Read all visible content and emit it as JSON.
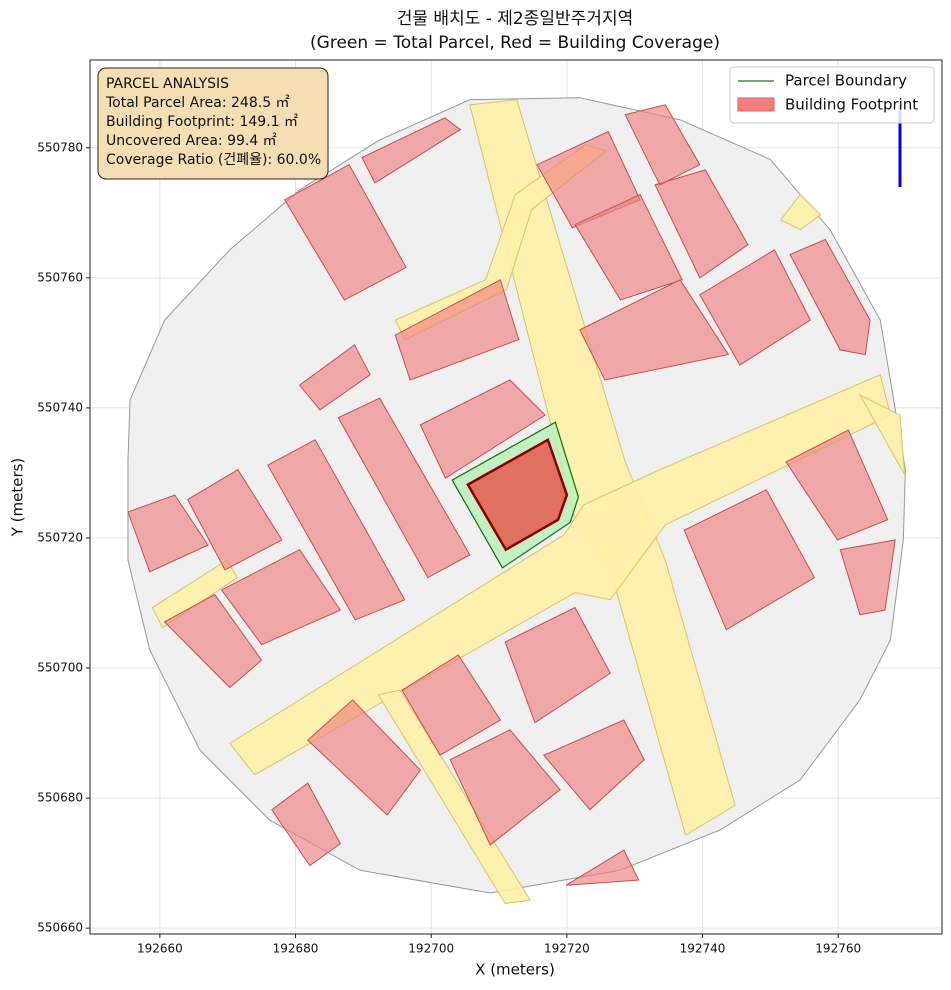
{
  "chart_data": {
    "type": "polygon",
    "title": "건물 배치도 - 제2종일반주거지역",
    "subtitle": "(Green = Total Parcel, Red = Building Coverage)",
    "xlabel": "X (meters)",
    "ylabel": "Y (meters)",
    "xlim": [
      192649.7,
      192775.3
    ],
    "ylim": [
      550659.1,
      550793.5
    ],
    "xticks": [
      192660,
      192680,
      192700,
      192720,
      192740,
      192760
    ],
    "yticks": [
      550660,
      550680,
      550700,
      550720,
      550740,
      550760,
      550780
    ],
    "grid": true,
    "legend": "upper right",
    "series": [
      {
        "name": "Parcel Boundary",
        "color": "#1a7a1a"
      },
      {
        "name": "Building Footprint",
        "color": "#f08080"
      }
    ],
    "info_box": {
      "title": "PARCEL ANALYSIS",
      "lines": [
        "Total Parcel Area: 248.5 ㎡",
        "Building Footprint: 149.1 ㎡",
        "Uncovered Area: 99.4 ㎡",
        "Coverage Ratio (건폐율): 60.0%"
      ]
    },
    "area": {
      "x": [
        192655.3,
        192655.6,
        192660.7,
        192670.3,
        192680.6,
        192692.4,
        192705.7,
        192721.9,
        192736.7,
        192750.0,
        192758.8,
        192766.2,
        192769.9,
        192769.6,
        192767.7,
        192763.2,
        192754.4,
        192742.6,
        192727.8,
        192708.7,
        192689.5,
        192676.2,
        192665.9,
        192658.5,
        192655.3
      ],
      "y": [
        550732.0,
        550741.2,
        550753.5,
        550764.3,
        550773.5,
        550781.2,
        550787.4,
        550787.7,
        550784.3,
        550778.2,
        550767.4,
        550753.5,
        550730.5,
        550719.7,
        550704.3,
        550695.1,
        550682.8,
        550675.1,
        550668.9,
        550665.4,
        550668.9,
        550676.6,
        550687.4,
        550702.8,
        550716.6
      ]
    },
    "roads": [
      {
        "x": [
          192705.7,
          192712.6,
          192728.6,
          192734.5,
          192744.8,
          192737.5,
          192726.4,
          192721.2
        ],
        "y": [
          550786.6,
          550787.4,
          550731.7,
          550716.6,
          550678.9,
          550674.3,
          550715.1,
          550722.8
        ]
      },
      {
        "x": [
          192670.3,
          192674.0,
          192721.2,
          192726.4,
          192734.5,
          192767.7,
          192766.2,
          192733.7,
          192722.5,
          192719.6
        ],
        "y": [
          550688.4,
          550683.6,
          550711.6,
          550710.5,
          550722.0,
          550738.9,
          550745.1,
          550730.5,
          550725.1,
          550720.5
        ]
      },
      {
        "x": [
          192658.9,
          192660.4,
          192671.4,
          192669.9
        ],
        "y": [
          550709.3,
          550706.2,
          550713.9,
          550716.6
        ]
      },
      {
        "x": [
          192692.2,
          192695.4,
          192714.6,
          192710.9
        ],
        "y": [
          550695.9,
          550696.6,
          550664.3,
          550663.8
        ]
      },
      {
        "x": [
          192694.7,
          192708.0,
          192712.4,
          192722.8,
          192725.8,
          192714.8,
          192711.1,
          192696.2
        ],
        "y": [
          550753.5,
          550759.7,
          550772.8,
          550780.5,
          550779.5,
          550770.5,
          550758.2,
          550750.5
        ]
      },
      {
        "x": [
          192751.5,
          192754.4,
          192757.4,
          192754.4
        ],
        "y": [
          550768.9,
          550772.8,
          550769.7,
          550767.4
        ]
      },
      {
        "x": [
          192763.2,
          192769.8,
          192769.1
        ],
        "y": [
          550742.0,
          550729.7,
          550738.9
        ]
      }
    ],
    "buildings": [
      {
        "x": [
          192678.4,
          192687.9,
          192696.3,
          192687.2
        ],
        "y": [
          550772.0,
          550777.4,
          550761.6,
          550756.6
        ]
      },
      {
        "x": [
          192689.8,
          192702.0,
          192704.3,
          192691.7
        ],
        "y": [
          550778.5,
          550784.6,
          550782.8,
          550774.6
        ]
      },
      {
        "x": [
          192715.6,
          192726.1,
          192730.8,
          192720.8
        ],
        "y": [
          550777.4,
          550782.5,
          550772.0,
          550767.7
        ]
      },
      {
        "x": [
          192721.2,
          192730.8,
          192737.0,
          192727.9
        ],
        "y": [
          550768.2,
          550772.8,
          550759.7,
          550756.6
        ]
      },
      {
        "x": [
          192733.0,
          192740.4,
          192746.7,
          192739.6
        ],
        "y": [
          550774.3,
          550776.6,
          550765.1,
          550760.0
        ]
      },
      {
        "x": [
          192728.6,
          192734.5,
          192739.6,
          192733.7
        ],
        "y": [
          550785.1,
          550786.6,
          550777.4,
          550774.3
        ]
      },
      {
        "x": [
          192694.7,
          192710.2,
          192712.9,
          192696.9
        ],
        "y": [
          550751.2,
          550759.7,
          550750.5,
          550744.3
        ]
      },
      {
        "x": [
          192721.9,
          192736.7,
          192743.8,
          192725.6
        ],
        "y": [
          550752.0,
          550759.7,
          550748.2,
          550744.3
        ]
      },
      {
        "x": [
          192739.6,
          192750.6,
          192755.9,
          192745.5
        ],
        "y": [
          550757.4,
          550764.3,
          550753.5,
          550746.6
        ]
      },
      {
        "x": [
          192752.9,
          192758.1,
          192764.7,
          192764.0,
          192760.3
        ],
        "y": [
          550763.6,
          550765.9,
          550753.5,
          550748.2,
          550748.9
        ]
      },
      {
        "x": [
          192698.4,
          192711.6,
          192716.8,
          192702.1
        ],
        "y": [
          550737.4,
          550744.3,
          550738.9,
          550729.2
        ]
      },
      {
        "x": [
          192680.6,
          192688.7,
          192691.0,
          192683.6
        ],
        "y": [
          550743.5,
          550749.7,
          550745.1,
          550739.7
        ]
      },
      {
        "x": [
          192686.3,
          192692.4,
          192705.7,
          192699.5
        ],
        "y": [
          550738.5,
          550741.5,
          550717.4,
          550713.9
        ]
      },
      {
        "x": [
          192675.9,
          192682.9,
          192696.1,
          192688.8
        ],
        "y": [
          550731.2,
          550735.1,
          550710.5,
          550707.4
        ]
      },
      {
        "x": [
          192664.1,
          192671.5,
          192678.0,
          192669.6
        ],
        "y": [
          550725.9,
          550730.5,
          550719.7,
          550715.1
        ]
      },
      {
        "x": [
          192655.3,
          192662.2,
          192667.1,
          192658.5
        ],
        "y": [
          550724.0,
          550726.6,
          550718.9,
          550714.8
        ]
      },
      {
        "x": [
          192669.1,
          192680.6,
          192686.6,
          192675.0
        ],
        "y": [
          550712.0,
          550718.2,
          550708.9,
          550703.6
        ]
      },
      {
        "x": [
          192660.7,
          192668.1,
          192675.0,
          192670.3
        ],
        "y": [
          550707.1,
          550711.3,
          550701.2,
          550697.0
        ]
      },
      {
        "x": [
          192710.9,
          192721.2,
          192726.4,
          192715.3
        ],
        "y": [
          550704.0,
          550709.3,
          550699.2,
          550691.6
        ]
      },
      {
        "x": [
          192737.3,
          192749.4,
          192756.5,
          192743.5
        ],
        "y": [
          550721.2,
          550727.4,
          550713.9,
          550705.9
        ]
      },
      {
        "x": [
          192752.3,
          192761.5,
          192767.3,
          192759.9
        ],
        "y": [
          550731.7,
          550736.6,
          550722.8,
          550719.7
        ]
      },
      {
        "x": [
          192695.7,
          192704.0,
          192710.2,
          192701.3
        ],
        "y": [
          550696.6,
          550702.0,
          550692.0,
          550686.6
        ]
      },
      {
        "x": [
          192681.8,
          192688.4,
          192698.4,
          192693.5
        ],
        "y": [
          550688.9,
          550695.1,
          550684.3,
          550677.4
        ]
      },
      {
        "x": [
          192702.8,
          192711.6,
          192719.0,
          192708.7
        ],
        "y": [
          550685.9,
          550690.5,
          550681.3,
          550672.8
        ]
      },
      {
        "x": [
          192716.6,
          192728.4,
          192731.4,
          192723.4
        ],
        "y": [
          550686.6,
          550692.0,
          550685.9,
          550678.2
        ]
      },
      {
        "x": [
          192676.5,
          192681.8,
          192686.6,
          192682.1
        ],
        "y": [
          550678.2,
          550682.3,
          550673.0,
          550669.6
        ]
      },
      {
        "x": [
          192719.9,
          192728.4,
          192730.6
        ],
        "y": [
          550666.6,
          550672.0,
          550667.4
        ]
      },
      {
        "x": [
          192760.3,
          192768.4,
          192766.9,
          192763.2
        ],
        "y": [
          550718.2,
          550719.7,
          550708.9,
          550708.2
        ]
      }
    ],
    "parcel": {
      "x": [
        192703.1,
        192718.3,
        192721.7,
        192720.5,
        192710.5
      ],
      "y": [
        550728.9,
        550737.8,
        550726.3,
        550722.4,
        550715.4
      ]
    },
    "footprint": {
      "x": [
        192705.4,
        192717.2,
        192720.0,
        192718.7,
        192711.0
      ],
      "y": [
        550728.2,
        550735.1,
        550726.6,
        550722.8,
        550718.2
      ]
    }
  }
}
